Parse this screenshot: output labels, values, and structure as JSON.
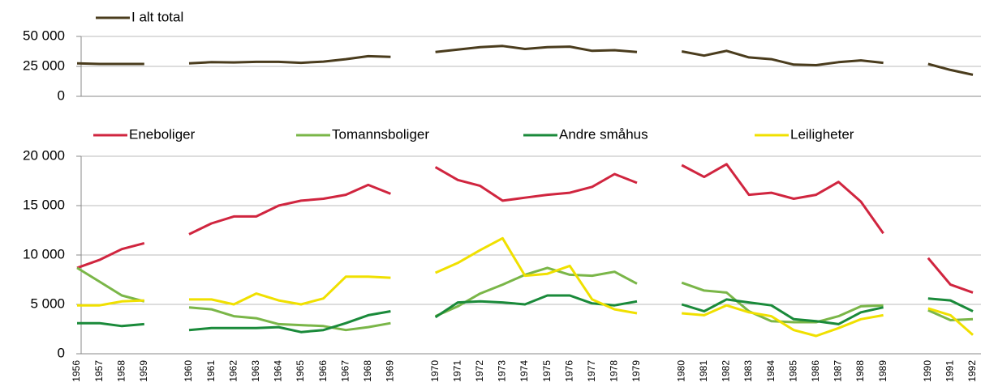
{
  "chart_data": [
    {
      "type": "line",
      "categories": [
        "1956",
        "1957",
        "1958",
        "1959",
        null,
        "1960",
        "1961",
        "1962",
        "1963",
        "1964",
        "1965",
        "1966",
        "1967",
        "1968",
        "1969",
        null,
        "1970",
        "1971",
        "1972",
        "1973",
        "1974",
        "1975",
        "1976",
        "1977",
        "1978",
        "1979",
        null,
        "1980",
        "1981",
        "1982",
        "1983",
        "1984",
        "1985",
        "1986",
        "1987",
        "1988",
        "1989",
        null,
        "1990",
        "1991",
        "1992"
      ],
      "series": [
        {
          "name": "I alt total",
          "color": "#4a3c1d",
          "values": [
            27500,
            27000,
            27000,
            27000,
            null,
            27500,
            28500,
            28300,
            28800,
            28800,
            28000,
            29000,
            31000,
            33500,
            33000,
            null,
            37000,
            39000,
            41000,
            42000,
            39500,
            41000,
            41500,
            38000,
            38500,
            37000,
            null,
            37500,
            34000,
            38000,
            32500,
            31000,
            26500,
            26000,
            28500,
            30000,
            28000,
            null,
            27000,
            22000,
            18000
          ]
        }
      ],
      "ylim": [
        0,
        50000
      ],
      "yticks": [
        0,
        {
          "value": 25000,
          "label": "25 000"
        },
        {
          "value": 50000,
          "label": "50 000"
        }
      ],
      "grid": true,
      "legend": "top-left"
    },
    {
      "type": "line",
      "categories": [
        "1956",
        "1957",
        "1958",
        "1959",
        null,
        "1960",
        "1961",
        "1962",
        "1963",
        "1964",
        "1965",
        "1966",
        "1967",
        "1968",
        "1969",
        null,
        "1970",
        "1971",
        "1972",
        "1973",
        "1974",
        "1975",
        "1976",
        "1977",
        "1978",
        "1979",
        null,
        "1980",
        "1981",
        "1982",
        "1983",
        "1984",
        "1985",
        "1986",
        "1987",
        "1988",
        "1989",
        null,
        "1990",
        "1991",
        "1992"
      ],
      "series": [
        {
          "name": "Eneboliger",
          "color": "#d0253f",
          "values": [
            8700,
            9500,
            10600,
            11200,
            null,
            12100,
            13200,
            13900,
            13900,
            15000,
            15500,
            15700,
            16100,
            17100,
            16200,
            null,
            18900,
            17600,
            17000,
            15500,
            15800,
            16100,
            16300,
            16900,
            18200,
            17300,
            null,
            19100,
            17900,
            19200,
            16100,
            16300,
            15700,
            16100,
            17400,
            15400,
            12200,
            null,
            9700,
            7000,
            6200
          ]
        },
        {
          "name": "Tomannsboliger",
          "color": "#7ab648",
          "values": [
            8700,
            7300,
            5900,
            5300,
            null,
            4700,
            4500,
            3800,
            3600,
            3000,
            2900,
            2800,
            2400,
            2700,
            3100,
            null,
            3800,
            4800,
            6100,
            7000,
            8000,
            8700,
            8000,
            7900,
            8300,
            7100,
            null,
            7200,
            6400,
            6200,
            4300,
            3300,
            3200,
            3200,
            3800,
            4800,
            4900,
            null,
            4400,
            3400,
            3500
          ]
        },
        {
          "name": "Andre småhus",
          "color": "#1a8a3a",
          "values": [
            3100,
            3100,
            2800,
            3000,
            null,
            2400,
            2600,
            2600,
            2600,
            2700,
            2200,
            2400,
            3100,
            3900,
            4300,
            null,
            3700,
            5200,
            5300,
            5200,
            5000,
            5900,
            5900,
            5100,
            4900,
            5300,
            null,
            5000,
            4300,
            5500,
            5200,
            4900,
            3500,
            3300,
            3000,
            4200,
            4700,
            null,
            5600,
            5400,
            4300
          ]
        },
        {
          "name": "Leiligheter",
          "color": "#f0e000",
          "values": [
            4900,
            4900,
            5300,
            5400,
            null,
            5500,
            5500,
            5000,
            6100,
            5400,
            5000,
            5600,
            7800,
            7800,
            7700,
            null,
            8200,
            9200,
            10500,
            11700,
            7900,
            8100,
            8900,
            5500,
            4500,
            4100,
            null,
            4100,
            3900,
            4900,
            4200,
            3800,
            2400,
            1800,
            2600,
            3500,
            3900,
            null,
            4600,
            3900,
            1900
          ]
        }
      ],
      "ylim": [
        0,
        20000
      ],
      "yticks": [
        0,
        {
          "value": 5000,
          "label": "5 000"
        },
        {
          "value": 10000,
          "label": "10 000"
        },
        {
          "value": 15000,
          "label": "15 000"
        },
        {
          "value": 20000,
          "label": "20 000"
        }
      ],
      "grid": true,
      "legend": "top"
    }
  ]
}
